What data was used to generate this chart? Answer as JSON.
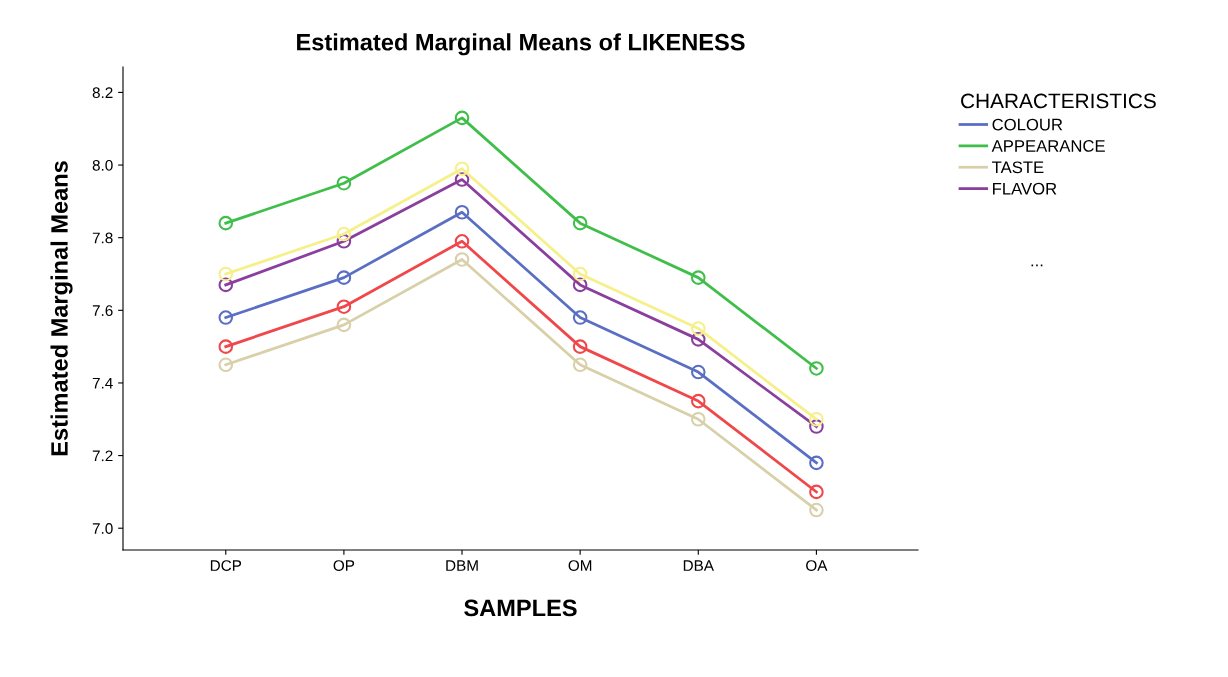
{
  "chart_data": {
    "type": "line",
    "title": "Estimated Marginal Means of LIKENESS",
    "xlabel": "SAMPLES",
    "ylabel": "Estimated Marginal Means",
    "legend_title": "CHARACTERISTICS",
    "categories": [
      "DCP",
      "OP",
      "DBM",
      "OM",
      "DBA",
      "OA"
    ],
    "series": [
      {
        "name": "COLOUR",
        "color": "#5a6fc4",
        "values": [
          7.58,
          7.69,
          7.87,
          7.58,
          7.43,
          7.18
        ]
      },
      {
        "name": "APPEARANCE",
        "color": "#3fbf4a",
        "values": [
          7.84,
          7.95,
          8.13,
          7.84,
          7.69,
          7.44
        ]
      },
      {
        "name": "TASTE",
        "color": "#d8d0a8",
        "values": [
          7.45,
          7.56,
          7.74,
          7.45,
          7.3,
          7.05
        ]
      },
      {
        "name": "FLAVOR",
        "color": "#8a3f9e",
        "values": [
          7.67,
          7.79,
          7.96,
          7.67,
          7.52,
          7.28
        ]
      },
      {
        "color": "#f5f08a",
        "values": [
          7.7,
          7.81,
          7.99,
          7.7,
          7.55,
          7.3
        ]
      },
      {
        "color": "#f0474a",
        "values": [
          7.5,
          7.61,
          7.79,
          7.5,
          7.35,
          7.1
        ]
      }
    ],
    "annotations": [
      "..."
    ],
    "ylim": [
      6.94,
      8.27
    ],
    "yticks": [
      {
        "value": 7.0,
        "label": "7.0"
      },
      {
        "value": 7.2,
        "label": "7.2"
      },
      {
        "value": 7.4,
        "label": "7.4"
      },
      {
        "value": 7.6,
        "label": "7.6"
      },
      {
        "value": 7.8,
        "label": "7.8"
      },
      {
        "value": 8.0,
        "label": "8.0"
      },
      {
        "value": 8.2,
        "label": "8.2"
      }
    ],
    "marker": "circle",
    "line_style": "solid",
    "grid": false,
    "legend": "right"
  }
}
